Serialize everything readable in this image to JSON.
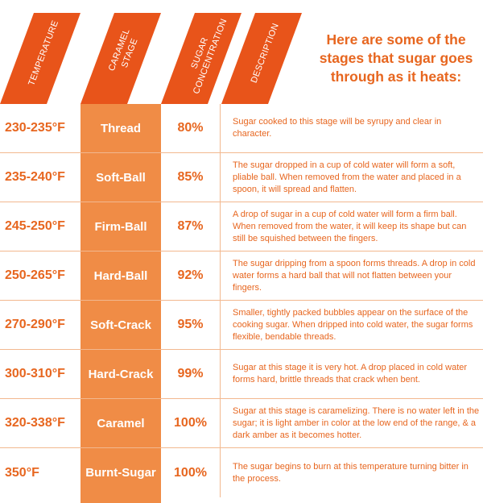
{
  "headers": {
    "temperature": "TEMPERATURE",
    "caramel_stage_line1": "CARAMEL",
    "caramel_stage_line2": "STAGE",
    "sugar_concentration_line1": "SUGAR",
    "sugar_concentration_line2": "CONCENTRATION",
    "description": "DESCRIPTION"
  },
  "intro": {
    "line1": "Here are some of the",
    "line2": "stages that sugar goes",
    "line3": "through as it heats:"
  },
  "rows": [
    {
      "temperature": "230-235°F",
      "stage": "Thread",
      "concentration": "80%",
      "description": "Sugar cooked to this stage will be syrupy and clear in character."
    },
    {
      "temperature": "235-240°F",
      "stage": "Soft-Ball",
      "concentration": "85%",
      "description": "The sugar dropped in a cup of cold water will form a soft, pliable ball. When removed from the water and placed in a spoon, it will spread and flatten."
    },
    {
      "temperature": "245-250°F",
      "stage": "Firm-Ball",
      "concentration": "87%",
      "description": "A drop of sugar in a cup of cold water will form a firm ball. When removed from the water, it will keep its shape but can still be squished between the fingers."
    },
    {
      "temperature": "250-265°F",
      "stage": "Hard-Ball",
      "concentration": "92%",
      "description": "The sugar dripping from a spoon forms threads. A drop in cold water forms a hard ball that will not flatten between your fingers."
    },
    {
      "temperature": "270-290°F",
      "stage": "Soft-Crack",
      "concentration": "95%",
      "description": "Smaller, tightly packed bubbles appear on the surface of the cooking sugar. When dripped into cold water, the sugar forms flexible, bendable threads."
    },
    {
      "temperature": "300-310°F",
      "stage": "Hard-Crack",
      "concentration": "99%",
      "description": "Sugar at this stage it is very hot. A drop placed in cold water forms hard, brittle threads that crack when bent."
    },
    {
      "temperature": "320-338°F",
      "stage": "Caramel",
      "concentration": "100%",
      "description": "Sugar at this stage is caramelizing. There is no water left in the sugar; it is light amber in color at the low end of the range, & a dark amber as it becomes hotter."
    },
    {
      "temperature": "350°F",
      "stage": "Burnt-Sugar",
      "concentration": "100%",
      "description": "The sugar begins to burn at this temperature turning bitter in the process."
    }
  ],
  "colors": {
    "accent": "#e7661f",
    "header_band": "#e8541a",
    "stage_column": "#f08c46",
    "divider": "#f2b88f"
  }
}
